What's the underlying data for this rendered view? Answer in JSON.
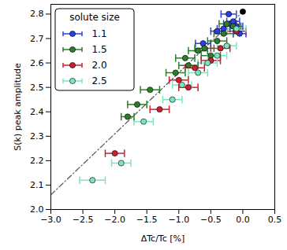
{
  "chart_data": {
    "type": "scatter",
    "x_label": "ΔTc/Tc [%]",
    "y_label": "S(k) peak amplitude",
    "xlim": [
      -3.0,
      0.5
    ],
    "ylim": [
      2.0,
      2.84
    ],
    "xticks": [
      {
        "value": -3.0,
        "label": "−3.0"
      },
      {
        "value": -2.5,
        "label": "−2.5"
      },
      {
        "value": -2.0,
        "label": "−2.0"
      },
      {
        "value": -1.5,
        "label": "−1.5"
      },
      {
        "value": -1.0,
        "label": "−1.0"
      },
      {
        "value": -0.5,
        "label": "−0.5"
      },
      {
        "value": 0.0,
        "label": "0.0"
      },
      {
        "value": 0.5,
        "label": "0.5"
      }
    ],
    "yticks": [
      {
        "value": 2.0,
        "label": "2.0"
      },
      {
        "value": 2.1,
        "label": "2.1"
      },
      {
        "value": 2.2,
        "label": "2.2"
      },
      {
        "value": 2.3,
        "label": "2.3"
      },
      {
        "value": 2.4,
        "label": "2.4"
      },
      {
        "value": 2.5,
        "label": "2.5"
      },
      {
        "value": 2.6,
        "label": "2.6"
      },
      {
        "value": 2.7,
        "label": "2.7"
      },
      {
        "value": 2.8,
        "label": "2.8"
      }
    ],
    "grid": false,
    "legend": "upper left",
    "legend_title": "solute size",
    "series": [
      {
        "name": "1.1",
        "color": "#2a3fe6",
        "marker": "circle",
        "x": [
          -0.22,
          -0.62,
          -0.4,
          -0.2,
          -0.1,
          -0.3,
          -0.15,
          -0.05
        ],
        "y": [
          2.8,
          2.68,
          2.73,
          2.76,
          2.75,
          2.74,
          2.77,
          2.72
        ],
        "xerr": [
          0.12,
          0.12,
          0.1,
          0.1,
          0.1,
          0.1,
          0.1,
          0.1
        ]
      },
      {
        "name": "1.5",
        "color": "#2d7d2d",
        "marker": "circle",
        "x": [
          -1.8,
          -1.65,
          -1.45,
          -1.05,
          -0.9,
          -0.85,
          -0.7,
          -0.6,
          -0.5,
          -0.4,
          -0.3,
          -0.25,
          -0.15
        ],
        "y": [
          2.38,
          2.43,
          2.49,
          2.56,
          2.62,
          2.59,
          2.65,
          2.66,
          2.63,
          2.69,
          2.72,
          2.76,
          2.75
        ],
        "xerr": [
          0.1,
          0.15,
          0.15,
          0.15,
          0.15,
          0.15,
          0.15,
          0.15,
          0.15,
          0.15,
          0.15,
          0.12,
          0.12
        ]
      },
      {
        "name": "2.0",
        "color": "#cc1f2f",
        "marker": "circle",
        "x": [
          -2.0,
          -1.3,
          -1.0,
          -0.85,
          -0.75,
          -0.5,
          -0.35,
          -0.1
        ],
        "y": [
          2.23,
          2.41,
          2.53,
          2.5,
          2.58,
          2.61,
          2.66,
          2.73
        ],
        "xerr": [
          0.15,
          0.15,
          0.15,
          0.15,
          0.15,
          0.15,
          0.15,
          0.15
        ]
      },
      {
        "name": "2.5",
        "color": "#7fe3c0",
        "marker": "circle",
        "x": [
          -2.35,
          -1.9,
          -1.55,
          -1.1,
          -0.95,
          -0.7,
          -0.55,
          -0.4,
          -0.25,
          -0.1
        ],
        "y": [
          2.12,
          2.19,
          2.36,
          2.45,
          2.51,
          2.56,
          2.6,
          2.63,
          2.67,
          2.74
        ],
        "xerr": [
          0.2,
          0.15,
          0.15,
          0.15,
          0.15,
          0.15,
          0.15,
          0.15,
          0.15,
          0.15
        ]
      }
    ],
    "reference_point": {
      "x": 0.0,
      "y": 2.81,
      "color": "#000000",
      "marker": "circle"
    },
    "fit_line": {
      "x": [
        -3.0,
        0.0
      ],
      "y": [
        2.06,
        2.81
      ],
      "color": "#555555",
      "line_style": "dashdot"
    }
  }
}
